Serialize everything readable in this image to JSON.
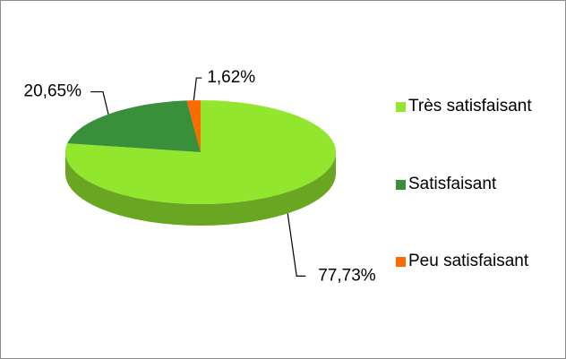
{
  "chart_data": {
    "type": "pie3d",
    "categories": [
      "Très satisfaisant",
      "Satisfaisant",
      "Peu satisfaisant"
    ],
    "values": [
      77.73,
      20.65,
      1.62
    ],
    "value_labels": [
      "77,73%",
      "20,65%",
      "1,62%"
    ],
    "colors": [
      "#92e62e",
      "#3a8f3a",
      "#ff6a00"
    ],
    "legend": "right"
  }
}
